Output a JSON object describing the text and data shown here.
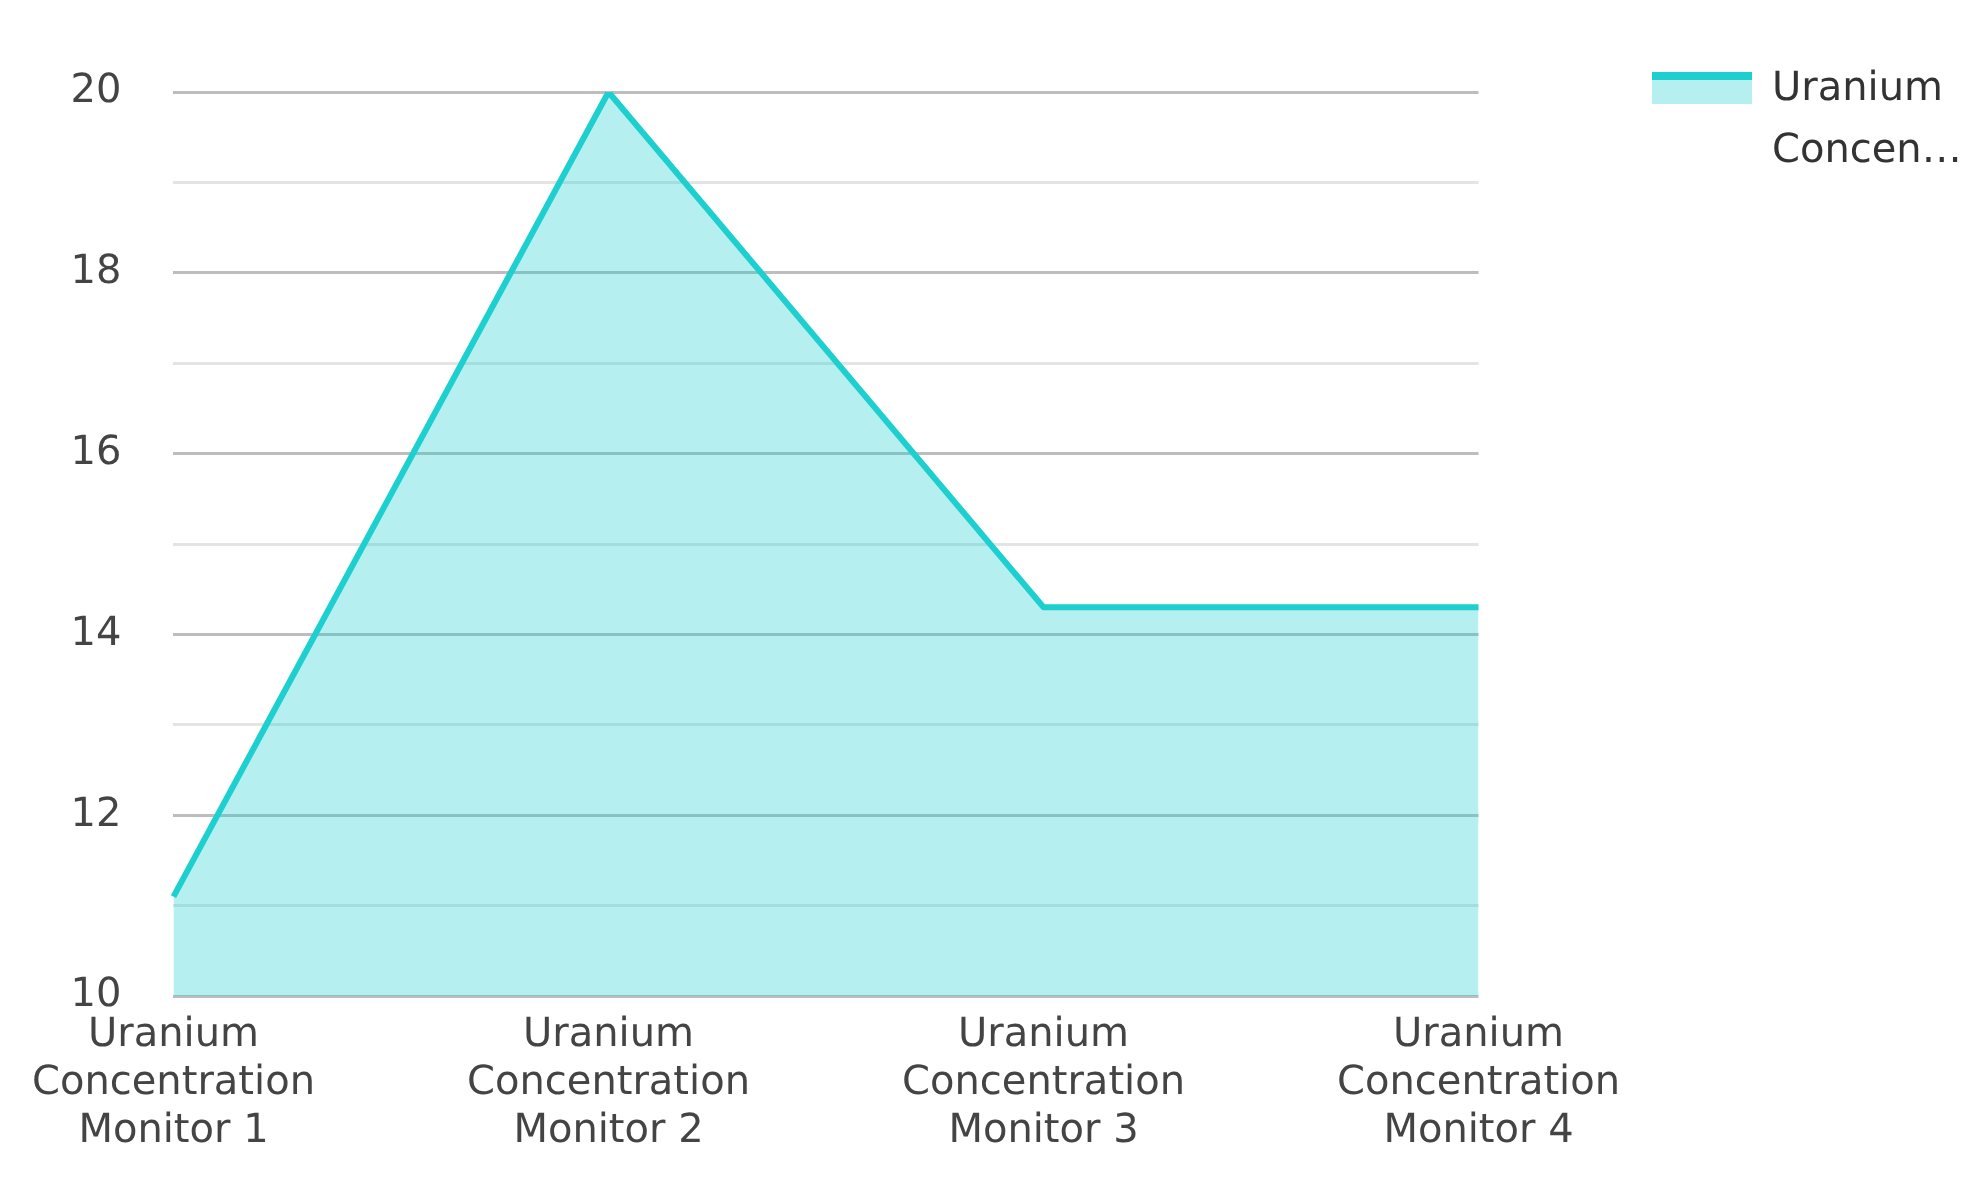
{
  "chart_data": {
    "type": "area",
    "categories": [
      "Uranium Concentration Monitor 1",
      "Uranium Concentration Monitor 2",
      "Uranium Concentration Monitor 3",
      "Uranium Concentration Monitor 4"
    ],
    "series": [
      {
        "name": "Uranium Concen…",
        "color": "#1dcfcf",
        "values": [
          11.1,
          20,
          14.3,
          14.3
        ]
      }
    ],
    "ylim": [
      10,
      20
    ],
    "yticks": [
      10,
      {
        "value": 11,
        "label": null
      },
      12,
      {
        "value": 13,
        "label": null
      },
      14,
      {
        "value": 15,
        "label": null
      },
      16,
      {
        "value": 17,
        "label": null
      },
      18,
      {
        "value": 19,
        "label": null
      },
      20
    ],
    "grid": "y",
    "legend": "top right",
    "marker": "none",
    "line_style": "solid"
  }
}
